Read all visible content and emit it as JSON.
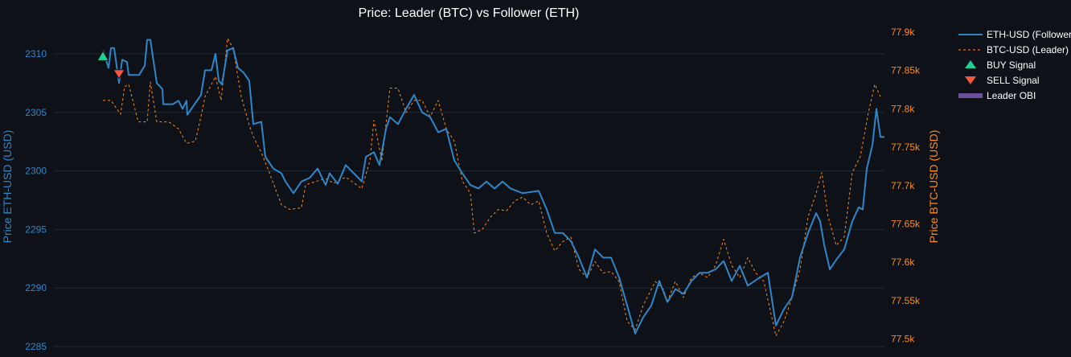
{
  "chart_data": {
    "type": "line",
    "title": "Price: Leader (BTC) vs Follower (ETH)",
    "ylabel_left": "Price ETH-USD (USD)",
    "ylabel_right": "Price BTC-USD (USD)",
    "ylim_left": [
      2284.6,
      2312.2
    ],
    "ylim_right": [
      77.49,
      77.93
    ],
    "yticks_left": [
      "2285",
      "2290",
      "2295",
      "2300",
      "2305",
      "2310"
    ],
    "yticks_left_values": [
      2285,
      2290,
      2295,
      2300,
      2305,
      2310
    ],
    "yticks_right": [
      "77.5k",
      "77.55k",
      "77.6k",
      "77.65k",
      "77.7k",
      "77.75k",
      "77.8k",
      "77.85k",
      "77.9k"
    ],
    "yticks_right_values": [
      77.5,
      77.55,
      77.6,
      77.65,
      77.7,
      77.75,
      77.8,
      77.85,
      77.9
    ],
    "grid": true,
    "legend_position": "right",
    "colors": {
      "eth": "#2e86c9",
      "btc": "#ff8c1a",
      "buy": "#1fcf95",
      "sell": "#f4583a",
      "obi": "#6b4f9a"
    },
    "legend": [
      "ETH-USD (Follower)",
      "BTC-USD (Leader)",
      "BUY Signal",
      "SELL Signal",
      "Leader OBI"
    ],
    "series": [
      {
        "name": "ETH-USD (Follower)",
        "axis": "left",
        "t": [
          0,
          7,
          10,
          14,
          20,
          24,
          30,
          32,
          45,
          52,
          55,
          59,
          67,
          74,
          75,
          87,
          94,
          99,
          104,
          105,
          122,
          127,
          135,
          140,
          144,
          148,
          155,
          162,
          168,
          175,
          182,
          187,
          197,
          202,
          212,
          222,
          227,
          237,
          247,
          257,
          267,
          277,
          282,
          292,
          302,
          312,
          322,
          327,
          337,
          344,
          352,
          357,
          367,
          377,
          387,
          397,
          407,
          417,
          427,
          437,
          447,
          457,
          467,
          477,
          487,
          497,
          507,
          522,
          542,
          552,
          562,
          572,
          582,
          592,
          602,
          612,
          622,
          632,
          642,
          652,
          662,
          672,
          682,
          692,
          702,
          712,
          722,
          732,
          742,
          752,
          762,
          772,
          782,
          792,
          802,
          817,
          827,
          837,
          847,
          857,
          867,
          877,
          887,
          892,
          897,
          904,
          914,
          922,
          932,
          940,
          945,
          950,
          957,
          962,
          967,
          972
        ],
        "values": [
          2310.3,
          2308.8,
          2310.5,
          2310.5,
          2307.5,
          2309.5,
          2309.3,
          2308.2,
          2308.2,
          2309.0,
          2311.2,
          2311.2,
          2307.5,
          2307.0,
          2305.7,
          2305.7,
          2306.0,
          2305.3,
          2306.0,
          2304.8,
          2306.5,
          2308.6,
          2308.6,
          2310.0,
          2307.7,
          2307.4,
          2310.3,
          2310.5,
          2308.8,
          2308.4,
          2307.7,
          2304.0,
          2304.2,
          2301.2,
          2300.2,
          2299.8,
          2299.1,
          2298.1,
          2299.1,
          2299.4,
          2300.2,
          2298.8,
          2299.8,
          2298.9,
          2300.5,
          2299.8,
          2299.1,
          2301.2,
          2301.6,
          2300.5,
          2303.6,
          2304.6,
          2304.0,
          2305.3,
          2306.5,
          2305.0,
          2304.6,
          2303.3,
          2303.6,
          2300.9,
          2299.8,
          2298.8,
          2298.5,
          2299.1,
          2298.5,
          2299.1,
          2298.5,
          2298.1,
          2298.3,
          2296.7,
          2294.7,
          2294.7,
          2294.0,
          2292.6,
          2290.9,
          2293.3,
          2292.6,
          2292.6,
          2290.9,
          2288.5,
          2286.1,
          2287.5,
          2288.5,
          2290.6,
          2288.8,
          2289.9,
          2289.5,
          2290.6,
          2291.3,
          2291.3,
          2291.6,
          2292.3,
          2290.6,
          2291.9,
          2290.2,
          2290.9,
          2291.3,
          2286.8,
          2288.2,
          2289.2,
          2292.6,
          2294.7,
          2296.4,
          2295.7,
          2293.7,
          2291.6,
          2292.6,
          2293.3,
          2295.7,
          2296.9,
          2296.7,
          2300.2,
          2302.2,
          2305.3,
          2302.9,
          2302.9
        ]
      },
      {
        "name": "BTC-USD (Leader)",
        "axis": "right",
        "t": [
          0,
          10,
          22,
          27,
          32,
          44,
          55,
          59,
          67,
          82,
          94,
          104,
          115,
          122,
          127,
          140,
          147,
          155,
          162,
          172,
          182,
          187,
          197,
          207,
          222,
          232,
          247,
          252,
          267,
          277,
          287,
          302,
          322,
          332,
          337,
          347,
          357,
          367,
          377,
          387,
          397,
          407,
          417,
          427,
          437,
          447,
          457,
          462,
          472,
          482,
          492,
          502,
          512,
          522,
          532,
          542,
          552,
          562,
          572,
          582,
          592,
          602,
          612,
          622,
          632,
          642,
          652,
          662,
          672,
          687,
          697,
          702,
          712,
          722,
          732,
          742,
          752,
          762,
          772,
          782,
          792,
          802,
          812,
          822,
          837,
          847,
          857,
          867,
          877,
          887,
          894,
          902,
          912,
          922,
          932,
          942,
          952,
          960,
          967
        ],
        "values": [
          77.811,
          77.811,
          77.793,
          77.829,
          77.832,
          77.783,
          77.783,
          77.835,
          77.783,
          77.783,
          77.774,
          77.755,
          77.758,
          77.79,
          77.816,
          77.842,
          77.811,
          77.892,
          77.879,
          77.816,
          77.779,
          77.764,
          77.743,
          77.717,
          77.675,
          77.669,
          77.671,
          77.701,
          77.706,
          77.709,
          77.703,
          77.711,
          77.696,
          77.732,
          77.785,
          77.732,
          77.827,
          77.827,
          77.795,
          77.811,
          77.811,
          77.79,
          77.811,
          77.774,
          77.758,
          77.706,
          77.69,
          77.638,
          77.643,
          77.659,
          77.669,
          77.667,
          77.68,
          77.685,
          77.675,
          77.68,
          77.638,
          77.615,
          77.627,
          77.633,
          77.591,
          77.58,
          77.601,
          77.586,
          77.588,
          77.575,
          77.523,
          77.512,
          77.544,
          77.575,
          77.565,
          77.549,
          77.575,
          77.554,
          77.58,
          77.586,
          77.58,
          77.596,
          77.63,
          77.596,
          77.58,
          77.606,
          77.586,
          77.575,
          77.504,
          77.523,
          77.554,
          77.591,
          77.659,
          77.69,
          77.717,
          77.659,
          77.622,
          77.633,
          77.717,
          77.738,
          77.795,
          77.832,
          77.816
        ]
      }
    ],
    "signals": [
      {
        "type": "BUY",
        "t": 0,
        "value": 2309.7
      },
      {
        "type": "SELL",
        "t": 20,
        "value": 2308.3
      }
    ]
  }
}
